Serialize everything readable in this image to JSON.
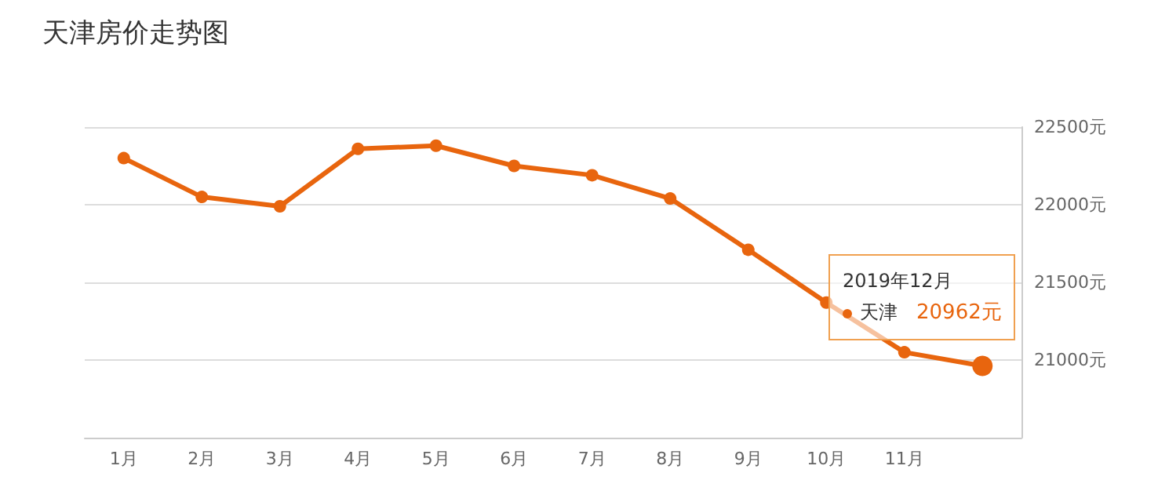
{
  "chart_data": {
    "type": "line",
    "title": "天津房价走势图",
    "categories": [
      "1月",
      "2月",
      "3月",
      "4月",
      "5月",
      "6月",
      "7月",
      "8月",
      "9月",
      "10月",
      "11月",
      null
    ],
    "series": [
      {
        "name": "天津",
        "color": "#e8650e",
        "values": [
          22300,
          22050,
          21990,
          22360,
          22380,
          22250,
          22190,
          22040,
          21710,
          21370,
          21050,
          20962
        ],
        "value_labels": [
          null,
          null,
          null,
          null,
          null,
          null,
          null,
          null,
          null,
          null,
          null,
          "20962元"
        ]
      }
    ],
    "annotations": [
      "2019年12月"
    ],
    "ylim": [
      20500,
      22500
    ],
    "yticks": [
      {
        "value": 21000,
        "label": "21000元"
      },
      {
        "value": 21500,
        "label": "21500元"
      },
      {
        "value": 22000,
        "label": "22000元"
      },
      {
        "value": 22500,
        "label": "22500元"
      }
    ],
    "grid": "y",
    "marker": "circle",
    "line_style": "solid",
    "legend": "right"
  }
}
